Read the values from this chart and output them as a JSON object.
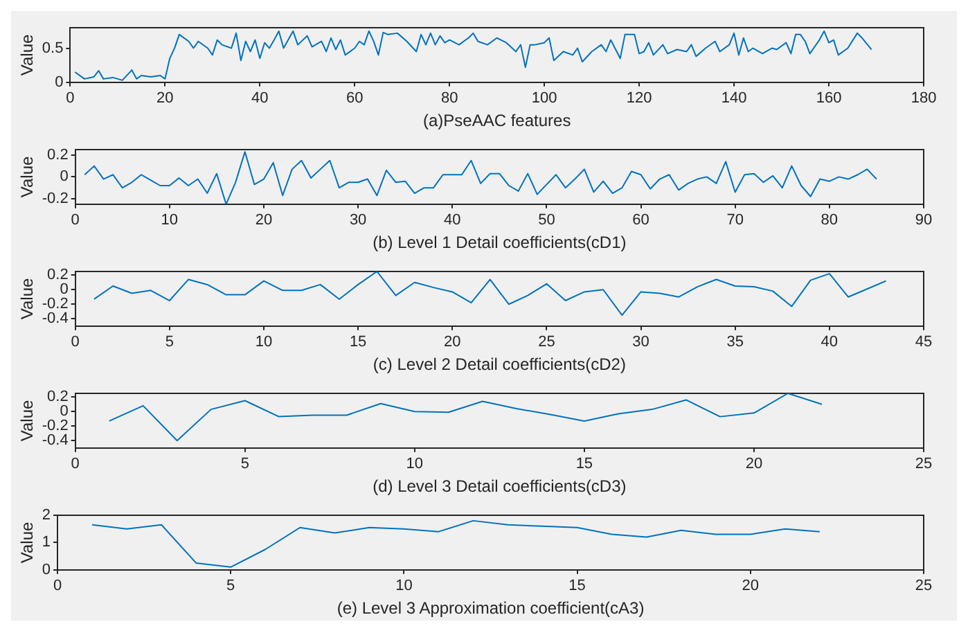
{
  "chart_data": [
    {
      "type": "line",
      "xlabel": "(a)PseAAC features",
      "ylabel": "Value",
      "xlim": [
        0,
        180
      ],
      "xticks": [
        0,
        20,
        40,
        60,
        80,
        100,
        120,
        140,
        160,
        180
      ],
      "ylim": [
        0,
        0.8
      ],
      "yticks": [
        0,
        0.5
      ],
      "grid": false,
      "legend": false,
      "series": [
        {
          "color": "#0072bd",
          "x": [
            1,
            3,
            5,
            6,
            7,
            9,
            11,
            13,
            14,
            15,
            17,
            19,
            20,
            21,
            22,
            23,
            25,
            26,
            27,
            29,
            30,
            31,
            32,
            34,
            35,
            36,
            37,
            38,
            39,
            40,
            41,
            42,
            43,
            44,
            45,
            47,
            48,
            50,
            51,
            53,
            54,
            55,
            56,
            57,
            58,
            60,
            61,
            62,
            63,
            64,
            65,
            66,
            67,
            69,
            71,
            73,
            74,
            75,
            76,
            77,
            78,
            79,
            80,
            82,
            84,
            85,
            86,
            88,
            90,
            92,
            94,
            95,
            96,
            97,
            98,
            100,
            101,
            102,
            104,
            106,
            107,
            108,
            110,
            112,
            113,
            114,
            116,
            117,
            119,
            120,
            121,
            122,
            123,
            125,
            126,
            128,
            130,
            131,
            132,
            134,
            136,
            137,
            139,
            140,
            141,
            142,
            143,
            144,
            146,
            148,
            149,
            151,
            152,
            153,
            154,
            155,
            156,
            158,
            159,
            160,
            161,
            162,
            164,
            166,
            167,
            169
          ],
          "values": [
            0.15,
            0.05,
            0.08,
            0.17,
            0.05,
            0.07,
            0.03,
            0.18,
            0.05,
            0.1,
            0.08,
            0.1,
            0.05,
            0.35,
            0.5,
            0.7,
            0.6,
            0.5,
            0.6,
            0.5,
            0.4,
            0.62,
            0.55,
            0.5,
            0.72,
            0.32,
            0.6,
            0.45,
            0.62,
            0.35,
            0.58,
            0.5,
            0.62,
            0.75,
            0.5,
            0.75,
            0.55,
            0.68,
            0.52,
            0.6,
            0.45,
            0.65,
            0.48,
            0.62,
            0.4,
            0.5,
            0.6,
            0.55,
            0.75,
            0.6,
            0.4,
            0.73,
            0.7,
            0.72,
            0.6,
            0.45,
            0.7,
            0.55,
            0.72,
            0.55,
            0.68,
            0.58,
            0.62,
            0.55,
            0.65,
            0.72,
            0.6,
            0.55,
            0.65,
            0.58,
            0.45,
            0.55,
            0.22,
            0.55,
            0.55,
            0.58,
            0.65,
            0.32,
            0.45,
            0.4,
            0.5,
            0.3,
            0.45,
            0.55,
            0.45,
            0.62,
            0.35,
            0.7,
            0.7,
            0.42,
            0.45,
            0.58,
            0.4,
            0.55,
            0.42,
            0.48,
            0.45,
            0.55,
            0.38,
            0.5,
            0.6,
            0.45,
            0.55,
            0.72,
            0.4,
            0.65,
            0.45,
            0.5,
            0.42,
            0.5,
            0.48,
            0.58,
            0.42,
            0.7,
            0.7,
            0.6,
            0.42,
            0.62,
            0.75,
            0.58,
            0.62,
            0.4,
            0.5,
            0.72,
            0.65,
            0.48
          ]
        }
      ]
    },
    {
      "type": "line",
      "xlabel": "(b) Level 1 Detail coefficients(cD1)",
      "ylabel": "Value",
      "xlim": [
        0,
        90
      ],
      "xticks": [
        0,
        10,
        20,
        30,
        40,
        50,
        60,
        70,
        80,
        90
      ],
      "ylim": [
        -0.25,
        0.25
      ],
      "yticks": [
        -0.2,
        0,
        0.2
      ],
      "grid": false,
      "legend": false,
      "series": [
        {
          "color": "#0072bd",
          "x": [
            1,
            2,
            3,
            4,
            5,
            6,
            7,
            8,
            9,
            10,
            11,
            12,
            13,
            14,
            15,
            16,
            17,
            18,
            19,
            20,
            21,
            22,
            23,
            24,
            25,
            26,
            27,
            28,
            29,
            30,
            31,
            32,
            33,
            34,
            35,
            36,
            37,
            38,
            39,
            40,
            41,
            42,
            43,
            44,
            45,
            46,
            47,
            48,
            49,
            50,
            51,
            52,
            53,
            54,
            55,
            56,
            57,
            58,
            59,
            60,
            61,
            62,
            63,
            64,
            65,
            66,
            67,
            68,
            69,
            70,
            71,
            72,
            73,
            74,
            75,
            76,
            77,
            78,
            79,
            80,
            81,
            82,
            83,
            84,
            85
          ],
          "values": [
            0.02,
            0.1,
            -0.02,
            0.02,
            -0.1,
            -0.05,
            0.02,
            -0.03,
            -0.08,
            -0.08,
            -0.01,
            -0.08,
            -0.02,
            -0.15,
            0.03,
            -0.25,
            -0.05,
            0.23,
            -0.07,
            -0.02,
            0.13,
            -0.17,
            0.07,
            0.15,
            -0.01,
            0.07,
            0.15,
            -0.1,
            -0.05,
            -0.05,
            -0.02,
            -0.17,
            0.06,
            -0.05,
            -0.04,
            -0.15,
            -0.1,
            -0.1,
            0.02,
            0.02,
            0.02,
            0.15,
            -0.06,
            0.03,
            0.03,
            -0.08,
            -0.13,
            0.03,
            -0.16,
            -0.07,
            0.02,
            -0.1,
            -0.02,
            0.07,
            -0.14,
            -0.04,
            -0.15,
            -0.1,
            0.05,
            0.02,
            -0.11,
            -0.02,
            0.02,
            -0.12,
            -0.06,
            -0.02,
            0,
            -0.06,
            0.14,
            -0.14,
            0.02,
            0.03,
            -0.05,
            0.01,
            -0.1,
            0.1,
            -0.08,
            -0.18,
            -0.02,
            -0.04,
            0,
            -0.02,
            0.02,
            0.07,
            -0.02
          ]
        }
      ]
    },
    {
      "type": "line",
      "xlabel": "(c) Level 2 Detail coefficients(cD2)",
      "ylabel": "Value",
      "xlim": [
        0,
        45
      ],
      "xticks": [
        0,
        5,
        10,
        15,
        20,
        25,
        30,
        35,
        40,
        45
      ],
      "ylim": [
        -0.5,
        0.25
      ],
      "yticks": [
        -0.4,
        -0.2,
        0,
        0.2
      ],
      "grid": false,
      "legend": false,
      "series": [
        {
          "color": "#0072bd",
          "x": [
            1,
            2,
            3,
            4,
            5,
            6,
            7,
            8,
            9,
            10,
            11,
            12,
            13,
            14,
            15,
            16,
            17,
            18,
            19,
            20,
            21,
            22,
            23,
            24,
            25,
            26,
            27,
            28,
            29,
            30,
            31,
            32,
            33,
            34,
            35,
            36,
            37,
            38,
            39,
            40,
            41,
            42,
            43
          ],
          "values": [
            -0.13,
            0.05,
            -0.05,
            -0.01,
            -0.15,
            0.14,
            0.07,
            -0.07,
            -0.07,
            0.12,
            -0.01,
            -0.01,
            0.07,
            -0.13,
            0.07,
            0.25,
            -0.08,
            0.1,
            0.03,
            -0.03,
            -0.18,
            0.14,
            -0.2,
            -0.08,
            0.08,
            -0.15,
            -0.03,
            0,
            -0.35,
            -0.03,
            -0.05,
            -0.1,
            0.04,
            0.14,
            0.05,
            0.04,
            -0.02,
            -0.23,
            0.13,
            0.22,
            -0.1,
            0.01,
            0.12
          ]
        }
      ]
    },
    {
      "type": "line",
      "xlabel": "(d) Level 3 Detail coefficients(cD3)",
      "ylabel": "Value",
      "xlim": [
        0,
        25
      ],
      "xticks": [
        0,
        5,
        10,
        15,
        20,
        25
      ],
      "ylim": [
        -0.5,
        0.25
      ],
      "yticks": [
        -0.4,
        -0.2,
        0,
        0.2
      ],
      "grid": false,
      "legend": false,
      "series": [
        {
          "color": "#0072bd",
          "x": [
            1,
            2,
            3,
            4,
            5,
            6,
            7,
            8,
            9,
            10,
            11,
            12,
            13,
            14,
            15,
            16,
            17,
            18,
            19,
            20,
            21,
            22
          ],
          "values": [
            -0.13,
            0.08,
            -0.4,
            0.03,
            0.15,
            -0.07,
            -0.05,
            -0.05,
            0.11,
            0,
            -0.01,
            0.14,
            0.04,
            -0.04,
            -0.13,
            -0.03,
            0.03,
            0.16,
            -0.07,
            -0.02,
            0.25,
            0.1
          ]
        }
      ]
    },
    {
      "type": "line",
      "xlabel": "(e) Level 3 Approximation coefficient(cA3)",
      "ylabel": "Value",
      "xlim": [
        0,
        25
      ],
      "xticks": [
        0,
        5,
        10,
        15,
        20,
        25
      ],
      "ylim": [
        0,
        2
      ],
      "yticks": [
        0,
        1,
        2
      ],
      "grid": false,
      "legend": false,
      "series": [
        {
          "color": "#0072bd",
          "x": [
            1,
            2,
            3,
            4,
            5,
            6,
            7,
            8,
            9,
            10,
            11,
            12,
            13,
            14,
            15,
            16,
            17,
            18,
            19,
            20,
            21,
            22
          ],
          "values": [
            1.65,
            1.5,
            1.65,
            0.25,
            0.1,
            0.75,
            1.55,
            1.35,
            1.55,
            1.5,
            1.4,
            1.8,
            1.65,
            1.6,
            1.55,
            1.3,
            1.2,
            1.45,
            1.3,
            1.3,
            1.5,
            1.4
          ]
        }
      ]
    }
  ]
}
